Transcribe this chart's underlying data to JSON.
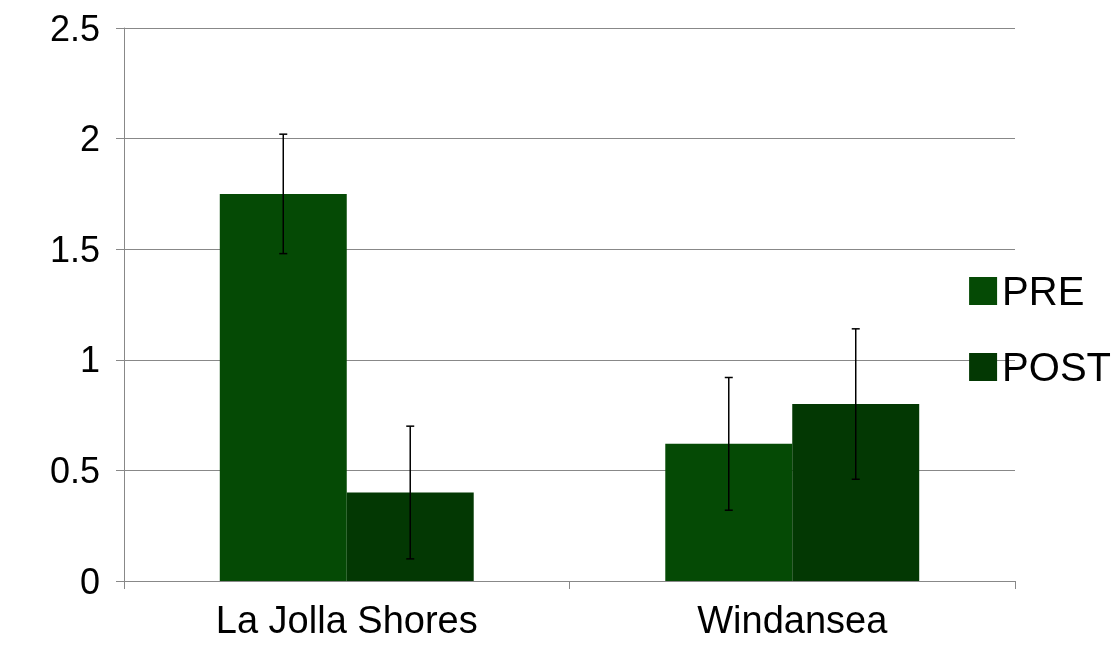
{
  "chart_data": {
    "type": "bar",
    "categories": [
      "La Jolla Shores",
      "Windansea"
    ],
    "series": [
      {
        "name": "PRE",
        "color": "#054a05",
        "values": [
          1.75,
          0.62
        ],
        "errors": [
          0.27,
          0.3
        ]
      },
      {
        "name": "POST",
        "color": "#033803",
        "values": [
          0.4,
          0.8
        ],
        "errors": [
          0.3,
          0.34
        ]
      }
    ],
    "ylim": [
      0,
      2.5
    ],
    "yticks": [
      0,
      0.5,
      1,
      1.5,
      2,
      2.5
    ],
    "grid": "y",
    "legend": "right"
  }
}
